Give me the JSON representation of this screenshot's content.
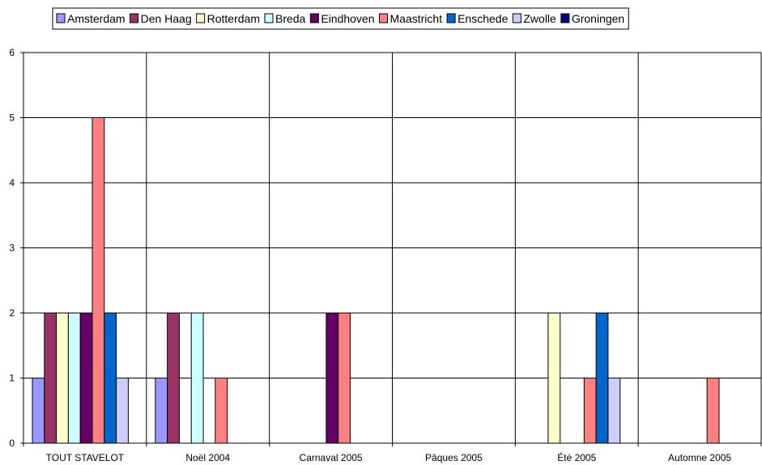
{
  "chart_data": {
    "type": "bar",
    "categories": [
      "TOUT STAVELOT",
      "Noël 2004",
      "Carnaval 2005",
      "Pâques 2005",
      "Été 2005",
      "Automne 2005"
    ],
    "series": [
      {
        "name": "Amsterdam",
        "color": "#9999FF",
        "values": [
          1,
          1,
          0,
          0,
          0,
          0
        ]
      },
      {
        "name": "Den Haag",
        "color": "#993366",
        "values": [
          2,
          2,
          0,
          0,
          0,
          0
        ]
      },
      {
        "name": "Rotterdam",
        "color": "#FFFFCC",
        "values": [
          2,
          0,
          0,
          0,
          2,
          0
        ]
      },
      {
        "name": "Breda",
        "color": "#CCFFFF",
        "values": [
          2,
          2,
          0,
          0,
          0,
          0
        ]
      },
      {
        "name": "Eindhoven",
        "color": "#660066",
        "values": [
          2,
          0,
          2,
          0,
          0,
          0
        ]
      },
      {
        "name": "Maastricht",
        "color": "#FF8080",
        "values": [
          5,
          1,
          2,
          0,
          1,
          1
        ]
      },
      {
        "name": "Enschede",
        "color": "#0066CC",
        "values": [
          2,
          0,
          0,
          0,
          2,
          0
        ]
      },
      {
        "name": "Zwolle",
        "color": "#CCCCFF",
        "values": [
          1,
          0,
          0,
          0,
          1,
          0
        ]
      },
      {
        "name": "Groningen",
        "color": "#000080",
        "values": [
          0,
          0,
          0,
          0,
          0,
          0
        ]
      }
    ],
    "y_ticks": [
      "0",
      "1",
      "2",
      "3",
      "4",
      "5",
      "6"
    ],
    "ylim": [
      0,
      6
    ],
    "title": "",
    "xlabel": "",
    "ylabel": "",
    "grid": true,
    "legend_position": "top"
  }
}
